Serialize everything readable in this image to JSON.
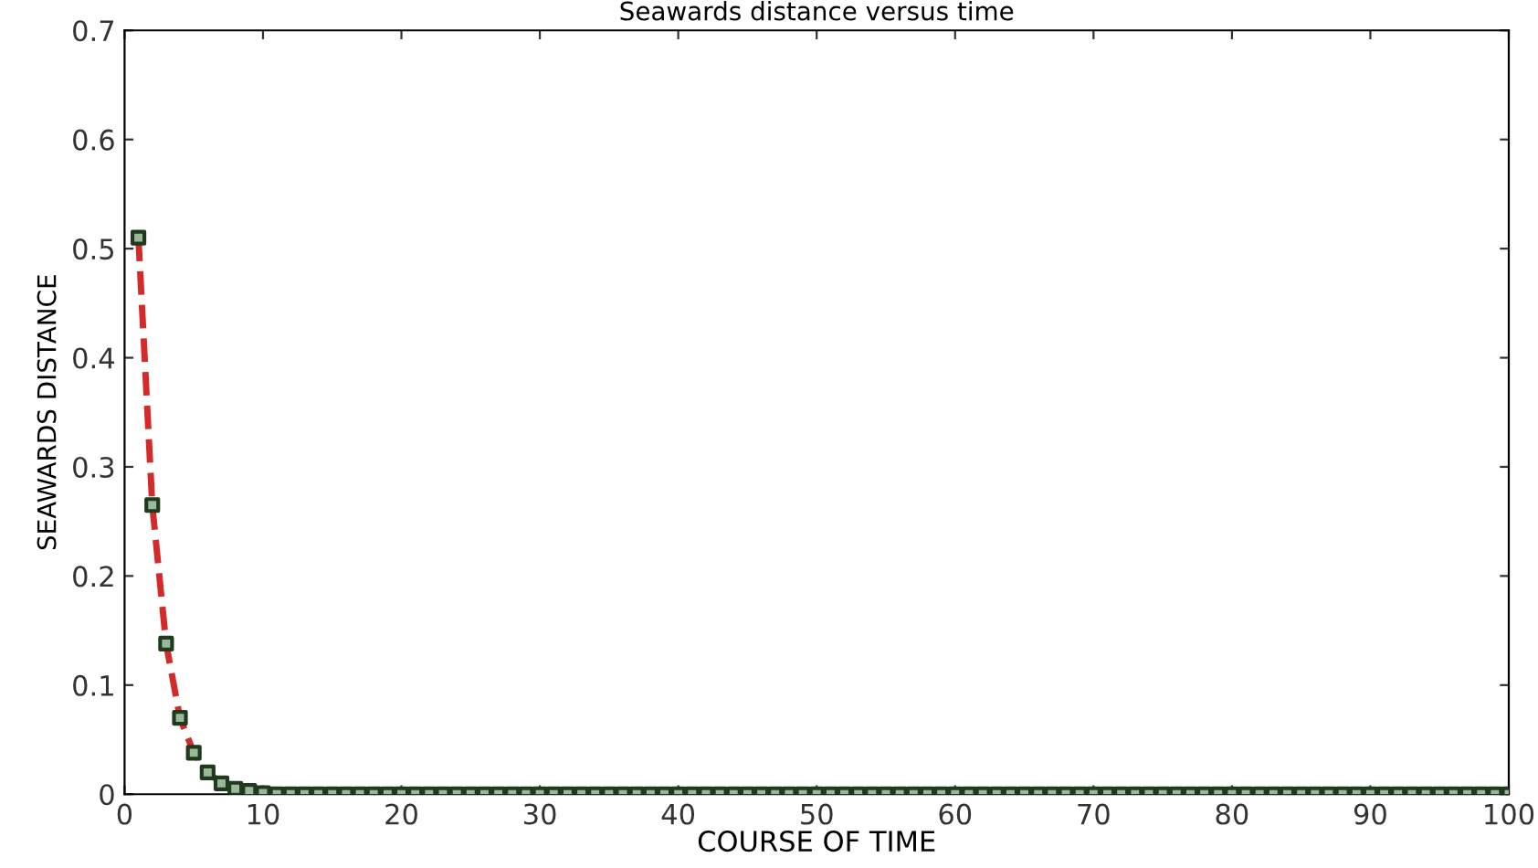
{
  "chart_data": {
    "type": "line",
    "title": "Seawards distance versus time",
    "xlabel": "COURSE OF TIME",
    "ylabel": "SEAWARDS DISTANCE",
    "x": [
      1,
      2,
      3,
      4,
      5,
      6,
      7,
      8,
      9,
      10,
      11,
      12,
      13,
      14,
      15,
      16,
      17,
      18,
      19,
      20,
      21,
      22,
      23,
      24,
      25,
      26,
      27,
      28,
      29,
      30,
      31,
      32,
      33,
      34,
      35,
      36,
      37,
      38,
      39,
      40,
      41,
      42,
      43,
      44,
      45,
      46,
      47,
      48,
      49,
      50,
      51,
      52,
      53,
      54,
      55,
      56,
      57,
      58,
      59,
      60,
      61,
      62,
      63,
      64,
      65,
      66,
      67,
      68,
      69,
      70,
      71,
      72,
      73,
      74,
      75,
      76,
      77,
      78,
      79,
      80,
      81,
      82,
      83,
      84,
      85,
      86,
      87,
      88,
      89,
      90,
      91,
      92,
      93,
      94,
      95,
      96,
      97,
      98,
      99,
      100
    ],
    "series": [
      {
        "color": "#d42a2a",
        "line_style": "dashed",
        "marker": "none",
        "x": [
          1,
          2,
          3,
          4,
          5,
          6,
          7
        ],
        "values": [
          0.51,
          0.265,
          0.138,
          0.07,
          0.038,
          0.02,
          0.01
        ]
      },
      {
        "type": "scatter",
        "color": "#1f3a1f",
        "marker": "square",
        "values": [
          0.51,
          0.265,
          0.138,
          0.07,
          0.038,
          0.02,
          0.01,
          0.005,
          0.003,
          0.001,
          0,
          0,
          0,
          0,
          0,
          0,
          0,
          0,
          0,
          0,
          0,
          0,
          0,
          0,
          0,
          0,
          0,
          0,
          0,
          0,
          0,
          0,
          0,
          0,
          0,
          0,
          0,
          0,
          0,
          0,
          0,
          0,
          0,
          0,
          0,
          0,
          0,
          0,
          0,
          0,
          0,
          0,
          0,
          0,
          0,
          0,
          0,
          0,
          0,
          0,
          0,
          0,
          0,
          0,
          0,
          0,
          0,
          0,
          0,
          0,
          0,
          0,
          0,
          0,
          0,
          0,
          0,
          0,
          0,
          0,
          0,
          0,
          0,
          0,
          0,
          0,
          0,
          0,
          0,
          0,
          0,
          0,
          0,
          0,
          0,
          0,
          0,
          0,
          0,
          0
        ]
      }
    ],
    "xlim": [
      0,
      100
    ],
    "xticks": [
      0,
      10,
      20,
      30,
      40,
      50,
      60,
      70,
      80,
      90,
      100
    ],
    "ylim": [
      0,
      0.7
    ],
    "yticks": [
      0,
      0.1,
      0.2,
      0.3,
      0.4,
      0.5,
      0.6,
      0.7
    ],
    "grid": false
  }
}
